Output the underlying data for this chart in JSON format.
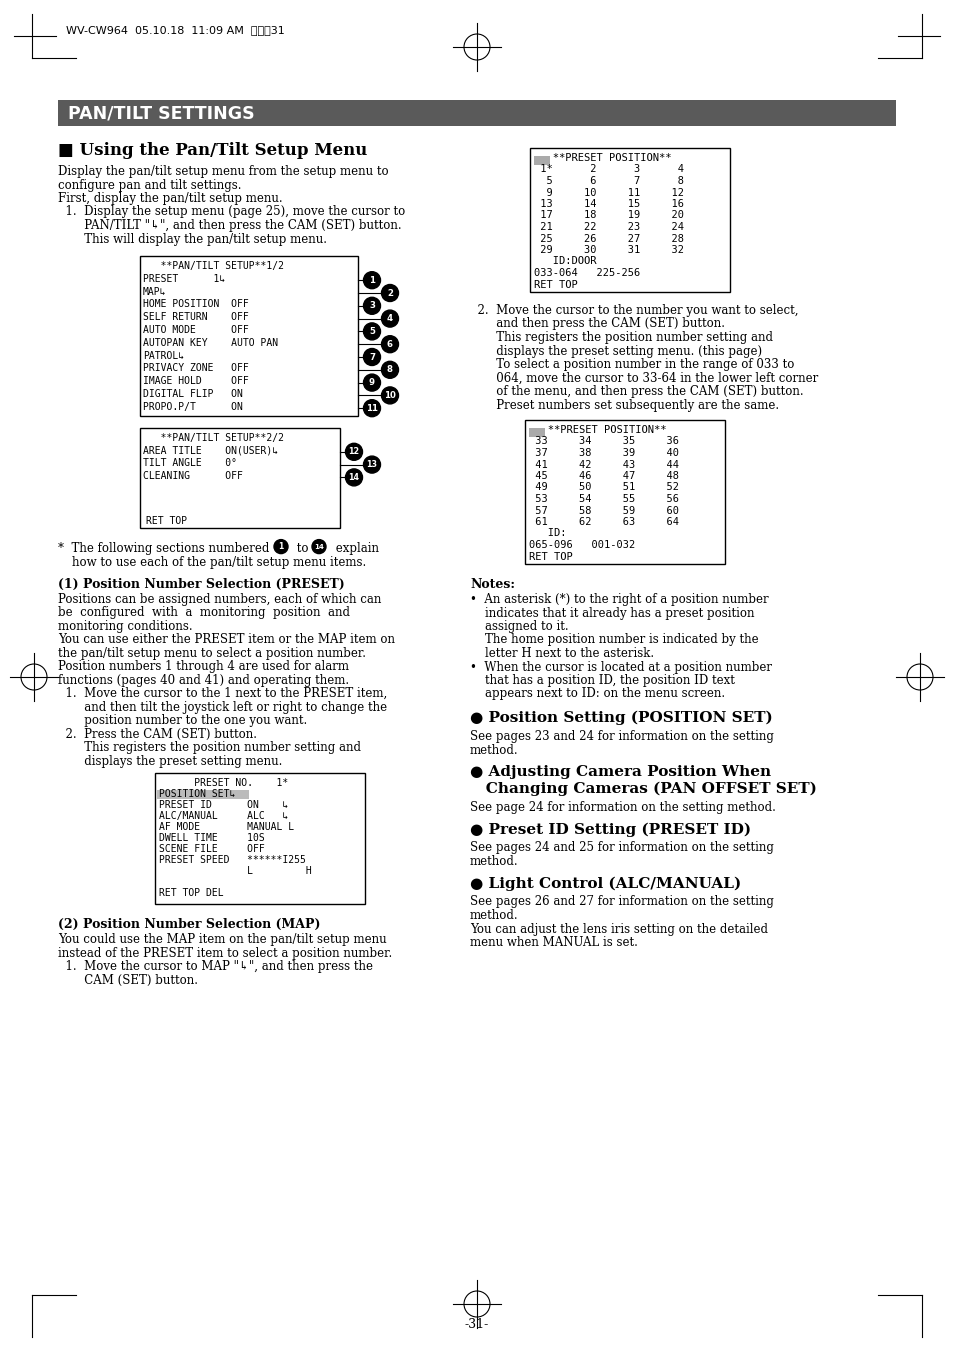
{
  "page_header_text": "WV-CW964  05.10.18  11:09 AM  ページ31",
  "section_title": "PAN/TILT SETTINGS",
  "section_title_bg": "#5a5a5a",
  "section_title_color": "#ffffff",
  "subsection1_title": "■ Using the Pan/Tilt Setup Menu",
  "menu_box1_lines": [
    "   **PAN/TILT SETUP**1/2",
    "PRESET      1↳",
    "MAP↳",
    "HOME POSITION  OFF",
    "SELF RETURN    OFF",
    "AUTO MODE      OFF",
    "AUTOPAN KEY    AUTO PAN",
    "PATROL↳",
    "PRIVACY ZONE   OFF",
    "IMAGE HOLD     OFF",
    "DIGITAL FLIP   ON",
    "PROPO.P/T      ON"
  ],
  "menu_box2_lines": [
    "   **PAN/TILT SETUP**2/2",
    "AREA TITLE    ON(USER)↳",
    "TILT ANGLE    0°",
    "CLEANING      OFF"
  ],
  "preset_pos_box1": [
    "   **PRESET POSITION**",
    " 1*      2      3      4",
    "  5      6      7      8",
    "  9     10     11     12",
    " 13     14     15     16",
    " 17     18     19     20",
    " 21     22     23     24",
    " 25     26     27     28",
    " 29     30     31     32",
    "   ID:DOOR",
    "033-064   225-256",
    "RET TOP"
  ],
  "preset_pos_box2": [
    "   **PRESET POSITION**",
    " 33     34     35     36",
    " 37     38     39     40",
    " 41     42     43     44",
    " 45     46     47     48",
    " 49     50     51     52",
    " 53     54     55     56",
    " 57     58     59     60",
    " 61     62     63     64",
    "   ID:",
    "065-096   001-032",
    "RET TOP"
  ],
  "preset_menu_box": [
    "      PRESET NO.    1*",
    "POSITION SET↳",
    "PRESET ID      ON    ↳",
    "ALC/MANUAL     ALC   ↳",
    "AF MODE        MANUAL L",
    "DWELL TIME     10S",
    "SCENE FILE     OFF",
    "PRESET SPEED   ******I255",
    "               L         H",
    "",
    "RET TOP DEL"
  ],
  "page_number": "-31-",
  "bg_color": "#ffffff"
}
